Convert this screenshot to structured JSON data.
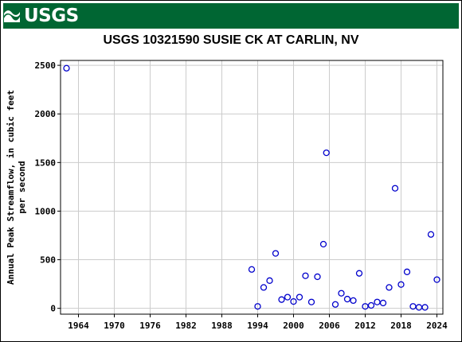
{
  "header": {
    "logo_text": "USGS",
    "banner_color": "#006633"
  },
  "chart_data": {
    "type": "scatter",
    "title": "USGS 10321590 SUSIE CK AT CARLIN, NV",
    "xlabel": "",
    "ylabel_lines": [
      "Annual Peak Streamflow, in cubic feet",
      "per second"
    ],
    "xlim": [
      1961,
      2025
    ],
    "ylim": [
      -60,
      2550
    ],
    "x_ticks": [
      1964,
      1970,
      1976,
      1982,
      1988,
      1994,
      2000,
      2006,
      2012,
      2018,
      2024
    ],
    "y_ticks": [
      0,
      500,
      1000,
      1500,
      2000,
      2500
    ],
    "y_tick_labels": [
      "0",
      "500",
      "1000",
      "1500",
      "2000",
      "2500"
    ],
    "grid": true,
    "marker_color": "#0000cc",
    "marker": "open-circle",
    "points": [
      {
        "x": 1962,
        "y": 2470
      },
      {
        "x": 1993,
        "y": 400
      },
      {
        "x": 1994,
        "y": 20
      },
      {
        "x": 1995,
        "y": 215
      },
      {
        "x": 1996,
        "y": 285
      },
      {
        "x": 1997,
        "y": 565
      },
      {
        "x": 1998,
        "y": 90
      },
      {
        "x": 1999,
        "y": 115
      },
      {
        "x": 2000,
        "y": 70
      },
      {
        "x": 2001,
        "y": 115
      },
      {
        "x": 2002,
        "y": 335
      },
      {
        "x": 2003,
        "y": 65
      },
      {
        "x": 2004,
        "y": 325
      },
      {
        "x": 2005,
        "y": 660
      },
      {
        "x": 2005.5,
        "y": 1600
      },
      {
        "x": 2007,
        "y": 40
      },
      {
        "x": 2008,
        "y": 155
      },
      {
        "x": 2009,
        "y": 95
      },
      {
        "x": 2010,
        "y": 80
      },
      {
        "x": 2011,
        "y": 360
      },
      {
        "x": 2012,
        "y": 20
      },
      {
        "x": 2013,
        "y": 30
      },
      {
        "x": 2014,
        "y": 65
      },
      {
        "x": 2015,
        "y": 55
      },
      {
        "x": 2016,
        "y": 215
      },
      {
        "x": 2017,
        "y": 1235
      },
      {
        "x": 2018,
        "y": 245
      },
      {
        "x": 2019,
        "y": 375
      },
      {
        "x": 2020,
        "y": 20
      },
      {
        "x": 2021,
        "y": 10
      },
      {
        "x": 2022,
        "y": 10
      },
      {
        "x": 2023,
        "y": 760
      },
      {
        "x": 2024,
        "y": 295
      }
    ]
  }
}
